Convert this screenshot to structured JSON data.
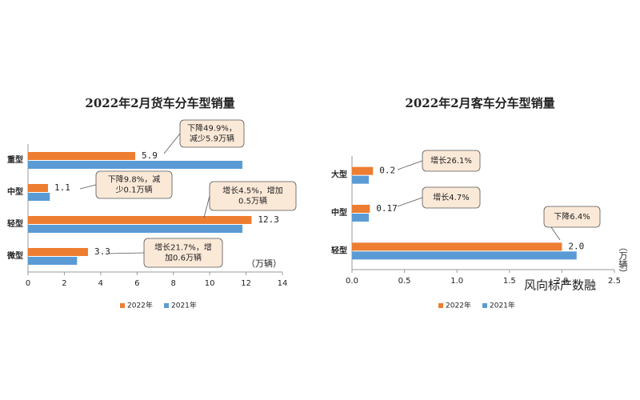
{
  "chart_data": [
    {
      "type": "hbar",
      "title": "2022年2月货车分车型销量",
      "categories": [
        "重型",
        "中型",
        "轻型",
        "微型"
      ],
      "series": [
        {
          "name": "2022年",
          "color": "#ed7d31",
          "values": [
            5.9,
            1.1,
            12.3,
            3.3
          ],
          "value_labels": [
            "5.9",
            "1.1",
            "12.3",
            "3.3"
          ]
        },
        {
          "name": "2021年",
          "color": "#5b9bd5",
          "values": [
            11.8,
            1.2,
            11.8,
            2.7
          ]
        }
      ],
      "xlim": [
        0,
        14
      ],
      "xticks": [
        0,
        2,
        4,
        6,
        8,
        10,
        12,
        14
      ],
      "unit": "（万辆）",
      "annotations": [
        [
          "下降49.9%，",
          "减少5.9万辆"
        ],
        [
          "下降9.8%，减",
          "少0.1万辆"
        ],
        [
          "增长4.5%，增加",
          "0.5万辆"
        ],
        [
          "增长21.7%，增",
          "加0.6万辆"
        ]
      ]
    },
    {
      "type": "hbar",
      "title": "2022年2月客车分车型销量",
      "categories": [
        "大型",
        "中型",
        "轻型"
      ],
      "series": [
        {
          "name": "2022年",
          "color": "#ed7d31",
          "values": [
            0.2,
            0.17,
            2.0
          ],
          "value_labels": [
            "0.2",
            "0.17",
            "2.0"
          ]
        },
        {
          "name": "2021年",
          "color": "#5b9bd5",
          "values": [
            0.16,
            0.16,
            2.14
          ]
        }
      ],
      "xlim": [
        0,
        2.5
      ],
      "xticks": [
        {
          "value": 0,
          "label": "0.0"
        },
        0.5,
        {
          "value": 1,
          "label": "1.0"
        },
        1.5,
        {
          "value": 2,
          "label": "2.0"
        },
        2.5
      ],
      "unit": "（万辆）",
      "annotations": [
        [
          "增长26.1%"
        ],
        [
          "增长4.7%"
        ],
        [
          "下降6.4%"
        ]
      ]
    }
  ],
  "watermark": "风向标产数融"
}
